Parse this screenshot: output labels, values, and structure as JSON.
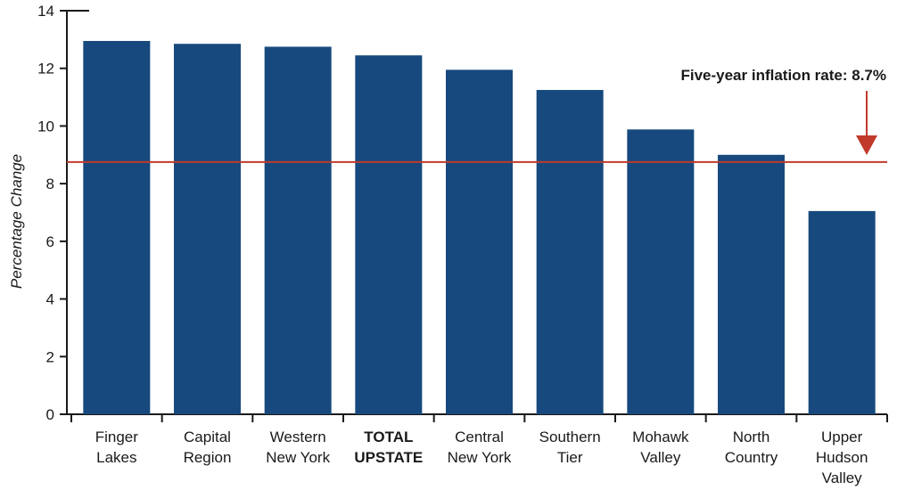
{
  "chart_data": {
    "type": "bar",
    "categories": [
      [
        "Finger",
        "Lakes"
      ],
      [
        "Capital",
        "Region"
      ],
      [
        "Western",
        "New York"
      ],
      [
        "TOTAL",
        "UPSTATE"
      ],
      [
        "Central",
        "New York"
      ],
      [
        "Southern",
        "Tier"
      ],
      [
        "Mohawk",
        "Valley"
      ],
      [
        "North",
        "Country"
      ],
      [
        "Upper",
        "Hudson",
        "Valley"
      ]
    ],
    "bold_categories": [
      3
    ],
    "values": [
      12.95,
      12.85,
      12.75,
      12.45,
      11.95,
      11.25,
      9.88,
      9.0,
      7.05
    ],
    "ylabel": "Percentage Change",
    "ylim": [
      0,
      14
    ],
    "yticks": [
      0,
      2,
      4,
      6,
      8,
      10,
      12,
      14
    ],
    "reference_line": {
      "value": 8.75,
      "label": "Five-year inflation rate: 8.7%",
      "color": "#c0392b"
    },
    "bar_color": "#17497e",
    "grid": false
  }
}
